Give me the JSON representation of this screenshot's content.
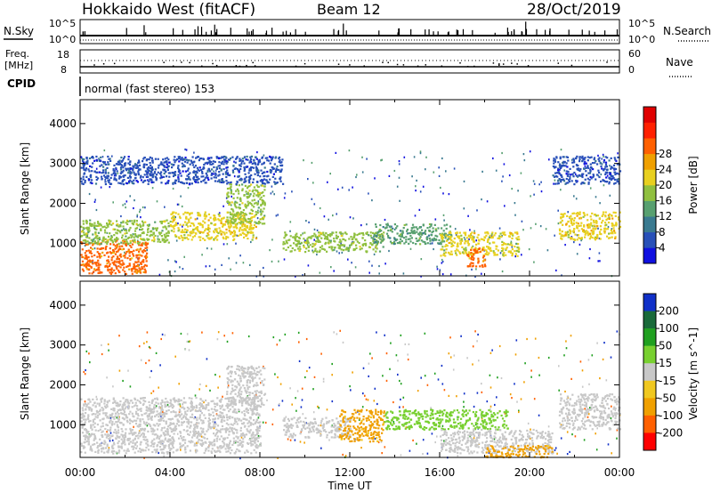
{
  "header": {
    "title": "Hokkaido West (fitACF)",
    "beam": "Beam 12",
    "date": "28/Oct/2019"
  },
  "noise_panel": {
    "left_label": "N.Sky",
    "right_label": "N.Search",
    "tick_top": "10^5",
    "tick_bottom": "10^0"
  },
  "freq_panel": {
    "left_label_1": "Freq.",
    "left_label_2": "[MHz]",
    "right_label": "Nave",
    "left_tick_top": "18",
    "left_tick_bottom": "8",
    "right_tick_top": "60",
    "right_tick_bottom": "0"
  },
  "cpid_panel": {
    "label": "CPID",
    "mode_text": "normal (fast stereo) 153"
  },
  "chart_data": [
    {
      "type": "heatmap",
      "name": "power",
      "ylabel": "Slant Range [km]",
      "xlabel": "",
      "colorbar_label": "Power [dB]",
      "y_ticks": [
        1000,
        2000,
        3000,
        4000
      ],
      "ylim": [
        180,
        4600
      ],
      "colorbar_ticks": [
        4,
        8,
        12,
        16,
        20,
        24,
        28
      ],
      "colorbar_colors": [
        "#1010e0",
        "#2850b8",
        "#3a7a90",
        "#58a070",
        "#90c040",
        "#e8d020",
        "#f0a000",
        "#ff6000",
        "#ff2000",
        "#e00000"
      ],
      "regions": [
        {
          "t0": 0.0,
          "t1": 3.0,
          "r0": 250,
          "r1": 1100,
          "level": 28
        },
        {
          "t0": 0.0,
          "t1": 4.0,
          "r0": 1000,
          "r1": 1600,
          "level": 18
        },
        {
          "t0": 4.0,
          "t1": 7.8,
          "r0": 1100,
          "r1": 1800,
          "level": 22
        },
        {
          "t0": 6.5,
          "t1": 8.2,
          "r0": 1500,
          "r1": 2500,
          "level": 18
        },
        {
          "t0": 9.0,
          "t1": 13.5,
          "r0": 800,
          "r1": 1300,
          "level": 18
        },
        {
          "t0": 13.0,
          "t1": 16.5,
          "r0": 1000,
          "r1": 1500,
          "level": 14
        },
        {
          "t0": 16.0,
          "t1": 19.5,
          "r0": 700,
          "r1": 1300,
          "level": 20
        },
        {
          "t0": 17.2,
          "t1": 18.0,
          "r0": 400,
          "r1": 900,
          "level": 28
        },
        {
          "t0": 21.3,
          "t1": 24.0,
          "r0": 1100,
          "r1": 1800,
          "level": 22
        },
        {
          "t0": 0.0,
          "t1": 9.0,
          "r0": 2500,
          "r1": 3200,
          "level": 6
        },
        {
          "t0": 21.0,
          "t1": 24.0,
          "r0": 2500,
          "r1": 3200,
          "level": 6
        }
      ]
    },
    {
      "type": "heatmap",
      "name": "velocity",
      "ylabel": "Slant Range [km]",
      "xlabel": "Time UT",
      "colorbar_label": "Velocity [m s^-1]",
      "y_ticks": [
        1000,
        2000,
        3000,
        4000
      ],
      "ylim": [
        180,
        4600
      ],
      "x_ticks": [
        "00:00",
        "04:00",
        "08:00",
        "12:00",
        "16:00",
        "20:00",
        "00:00"
      ],
      "colorbar_ticks": [
        200,
        100,
        50,
        15,
        -15,
        -50,
        -100,
        -200
      ],
      "colorbar_colors": [
        "#1030c8",
        "#1a6a3a",
        "#20a020",
        "#78d030",
        "#c8c8c8",
        "#f0c820",
        "#f0a000",
        "#ff6000",
        "#ff0000"
      ],
      "regions": [
        {
          "t0": 0.0,
          "t1": 8.0,
          "r0": 300,
          "r1": 1700,
          "level": 0
        },
        {
          "t0": 6.5,
          "t1": 8.2,
          "r0": 1500,
          "r1": 2500,
          "level": 0
        },
        {
          "t0": 9.0,
          "t1": 12.0,
          "r0": 700,
          "r1": 1200,
          "level": 0
        },
        {
          "t0": 11.5,
          "t1": 13.5,
          "r0": 600,
          "r1": 1400,
          "level": -60
        },
        {
          "t0": 13.5,
          "t1": 19.0,
          "r0": 900,
          "r1": 1400,
          "level": 30
        },
        {
          "t0": 16.0,
          "t1": 21.0,
          "r0": 300,
          "r1": 900,
          "level": 0
        },
        {
          "t0": 18.0,
          "t1": 21.0,
          "r0": 200,
          "r1": 500,
          "level": -60
        },
        {
          "t0": 21.3,
          "t1": 24.0,
          "r0": 900,
          "r1": 1800,
          "level": 0
        }
      ]
    }
  ]
}
